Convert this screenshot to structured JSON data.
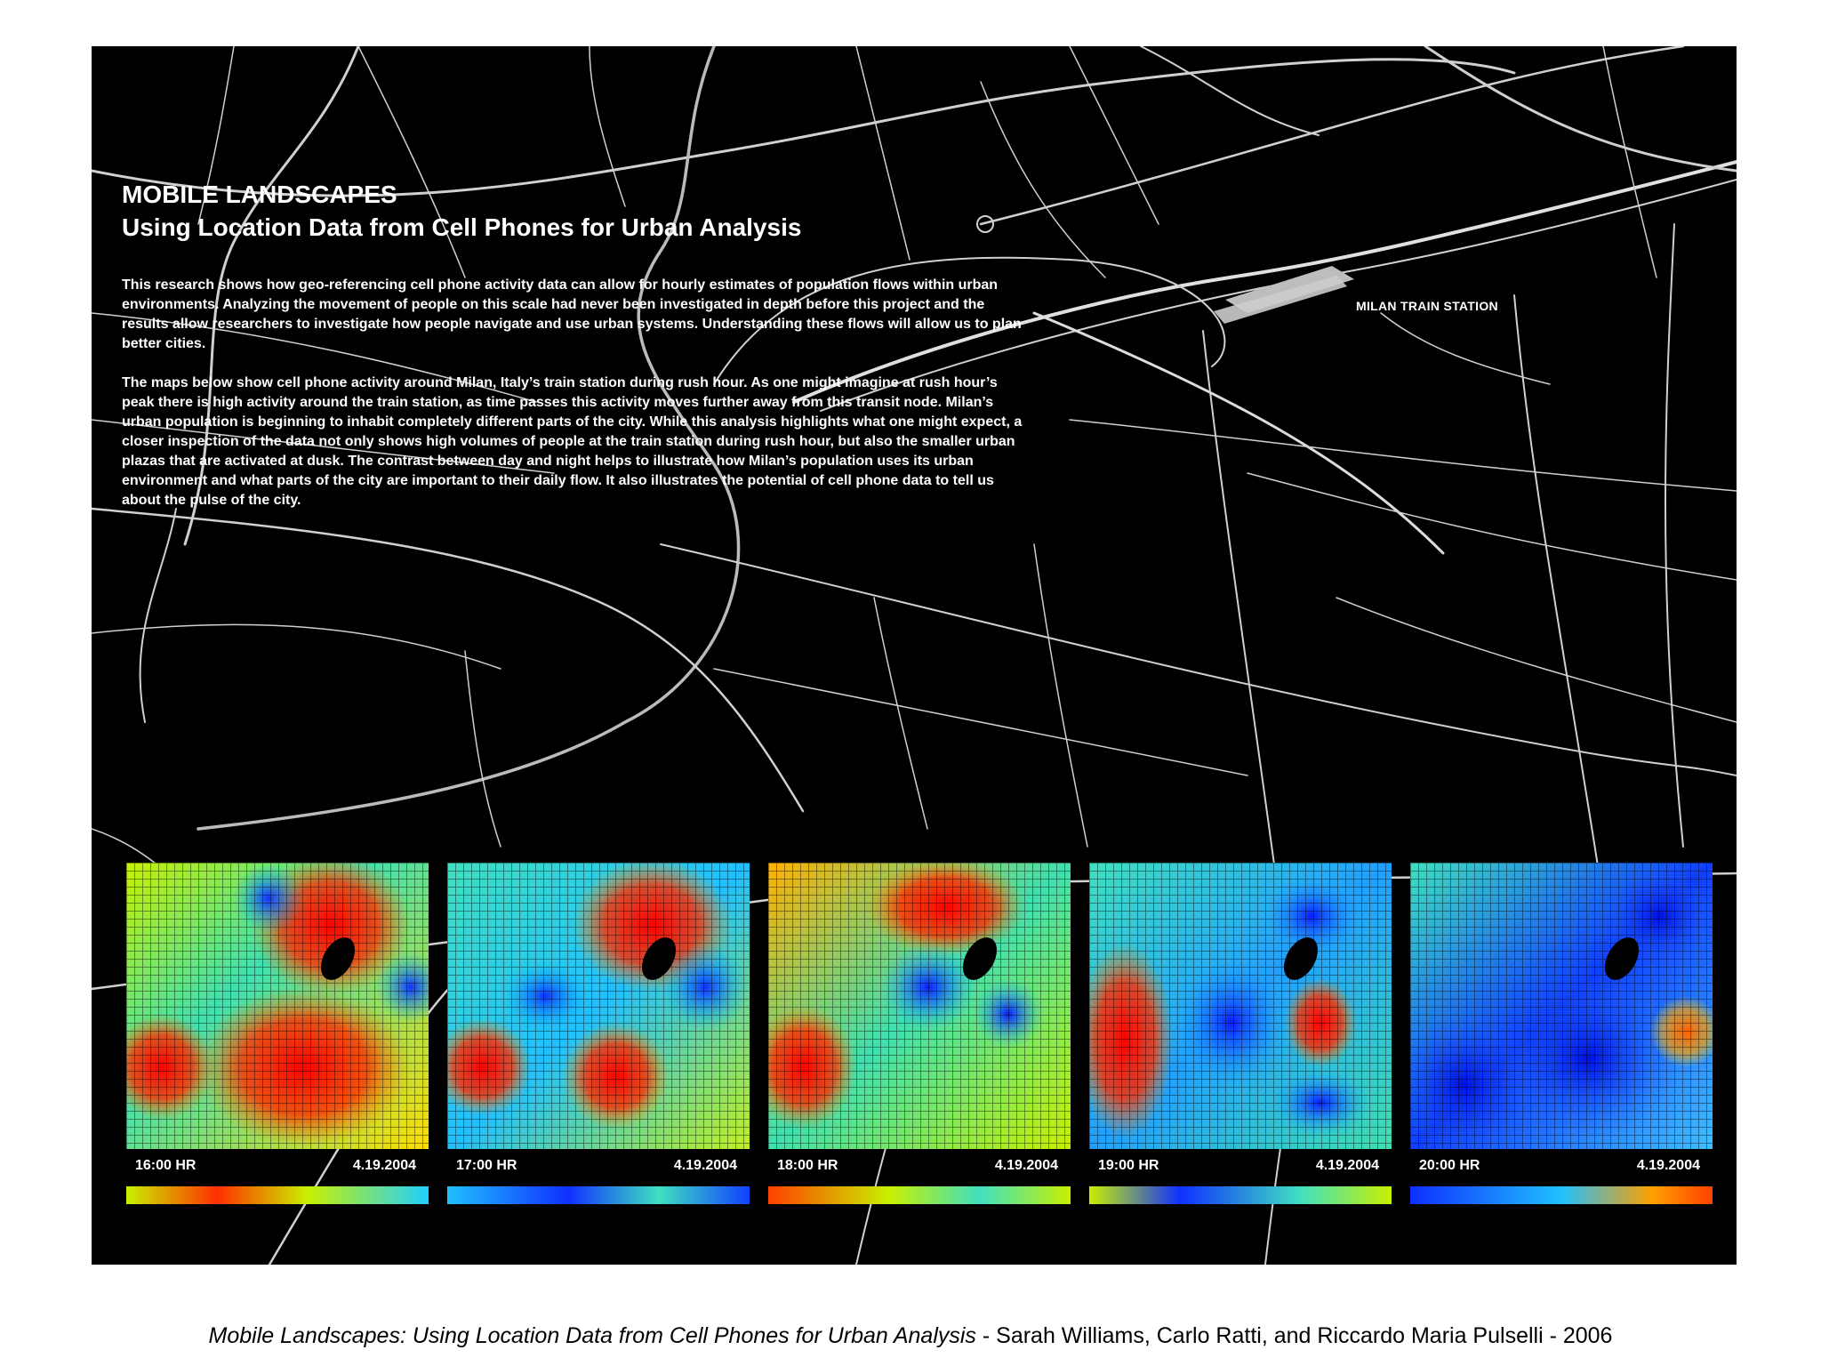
{
  "title": {
    "line1": "MOBILE LANDSCAPES",
    "line2": "Using Location Data from Cell Phones for Urban Analysis"
  },
  "body": {
    "paragraph1": "This research shows how geo-referencing cell phone activity data can allow for hourly estimates of population flows within urban environments. Analyzing the movement of people on this scale had never been investigated in depth before this project and the results allow researchers to investigate how people navigate and use urban systems. Understanding these flows will allow us to plan better cities.",
    "paragraph2": "The maps below show cell phone activity around Milan, Italy’s train station during rush hour. As one might imagine at rush hour’s peak there is high activity around the train station, as time passes this activity moves further away from this transit node. Milan’s urban population is beginning to inhabit completely different parts of the city. While this analysis highlights what one might expect, a closer inspection of the data not only shows high volumes of people at the train station during rush hour, but also the smaller urban plazas that are activated at dusk. The contrast between day and night helps to illustrate how Milan’s population uses its urban environment and what parts of the city are important to their daily flow. It also illustrates the potential of cell phone data to tell us about the pulse of the city."
  },
  "map": {
    "station_label": "MILAN TRAIN STATION"
  },
  "panels": [
    {
      "time": "16:00 HR",
      "date": "4.19.2004"
    },
    {
      "time": "17:00 HR",
      "date": "4.19.2004"
    },
    {
      "time": "18:00 HR",
      "date": "4.19.2004"
    },
    {
      "time": "19:00 HR",
      "date": "4.19.2004"
    },
    {
      "time": "20:00 HR",
      "date": "4.19.2004"
    }
  ],
  "footer": {
    "title": "Mobile Landscapes: Using Location Data from Cell Phones for Urban Analysis",
    "credits": " - Sarah Williams, Carlo Ratti, and Riccardo Maria Pulselli - 2006"
  },
  "colors": {
    "poster_background": "#000000",
    "road": "#d8d8d8",
    "heat_high": "#ff0000",
    "heat_low": "#0a1aff"
  }
}
